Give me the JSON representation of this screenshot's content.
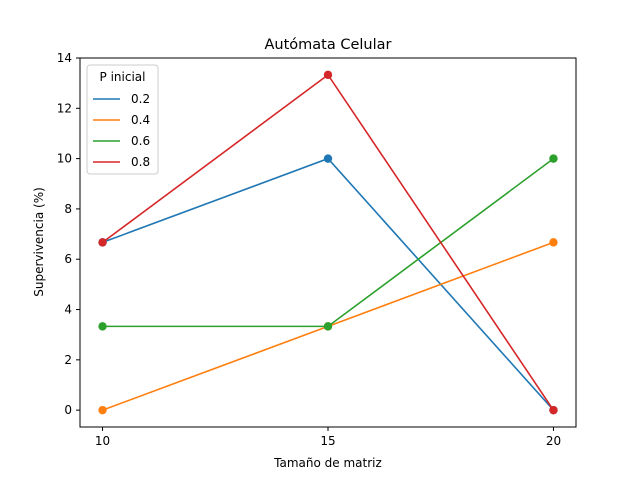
{
  "chart_data": {
    "type": "line",
    "title": "Autómata Celular",
    "xlabel": "Tamaño de matriz",
    "ylabel": "Supervivencia (%)",
    "x": [
      10,
      15,
      20
    ],
    "x_ticks": [
      "10",
      "15",
      "20"
    ],
    "y_ticks": [
      "0",
      "2",
      "4",
      "6",
      "8",
      "10",
      "12",
      "14"
    ],
    "xlim": [
      9.5,
      20.5
    ],
    "ylim": [
      -0.67,
      14
    ],
    "grid": false,
    "legend": {
      "title": "P inicial",
      "placement": "top-left"
    },
    "series": [
      {
        "name": "0.2",
        "color": "#1f77b4",
        "values": [
          6.67,
          10.0,
          0.0
        ]
      },
      {
        "name": "0.4",
        "color": "#ff7f0e",
        "values": [
          0.0,
          3.33,
          6.67
        ]
      },
      {
        "name": "0.6",
        "color": "#2ca02c",
        "values": [
          3.33,
          3.33,
          10.0
        ]
      },
      {
        "name": "0.8",
        "color": "#d62728",
        "values": [
          6.67,
          13.33,
          0.0
        ]
      }
    ]
  }
}
